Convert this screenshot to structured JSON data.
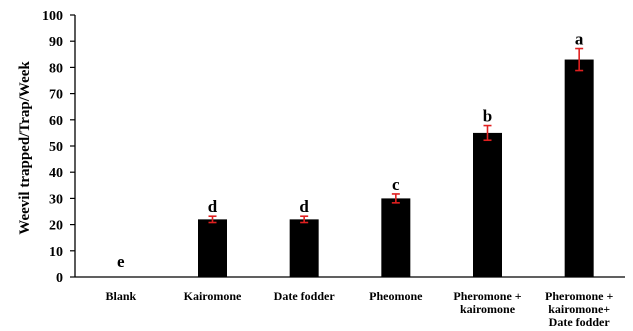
{
  "chart_data": {
    "type": "bar",
    "categories": [
      [
        "Blank"
      ],
      [
        "Kairomone"
      ],
      [
        "Date fodder"
      ],
      [
        "Pheomone"
      ],
      [
        "Pheromone +",
        "kairomone"
      ],
      [
        "Pheromone +",
        "kairomone+",
        "Date fodder"
      ]
    ],
    "values": [
      0,
      22,
      22,
      30,
      55,
      83
    ],
    "errors": [
      0,
      1.2,
      1.2,
      1.7,
      2.8,
      4.2
    ],
    "significance_letters": [
      "e",
      "d",
      "d",
      "c",
      "b",
      "a"
    ],
    "ylabel": "Weevil trapped/Trap/Week",
    "ylim": [
      0,
      100
    ],
    "yticks": [
      0,
      10,
      20,
      30,
      40,
      50,
      60,
      70,
      80,
      90,
      100
    ],
    "grid": false,
    "legend": "none",
    "colors": {
      "bar": "#000000",
      "error_bar": "#e02020",
      "axis": "#000000"
    }
  }
}
